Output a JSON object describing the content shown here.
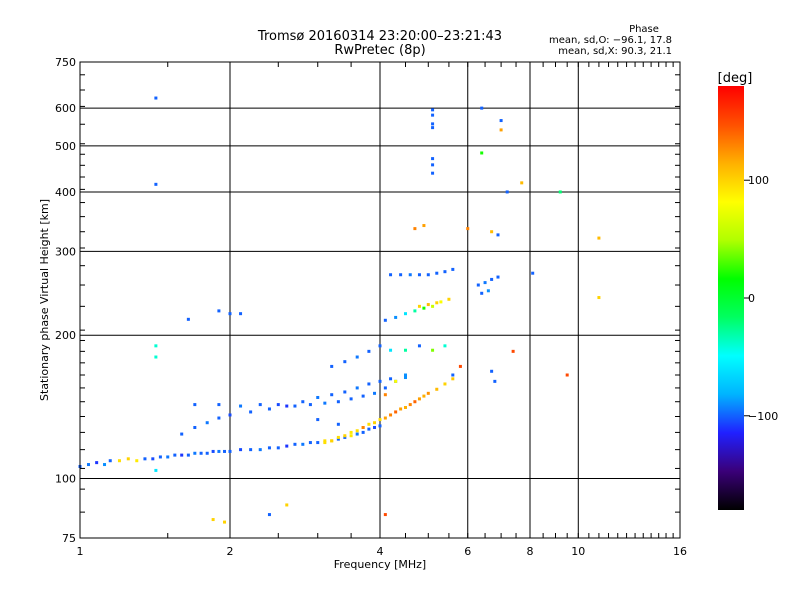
{
  "chart_data": {
    "type": "scatter",
    "title": "Tromsø 20160314 23:20:00–23:21:43",
    "subtitle": "RwPretec (8p)",
    "xlabel": "Frequency [MHz]",
    "ylabel": "Stationary phase Virtual Height [km]",
    "x_scale": "log",
    "y_scale": "log",
    "xlim": [
      1,
      16
    ],
    "ylim": [
      75,
      750
    ],
    "x_ticks": [
      "1",
      "2",
      "4",
      "6",
      "8",
      "10",
      "16"
    ],
    "y_ticks": [
      "75",
      "100",
      "200",
      "300",
      "400",
      "500",
      "600",
      "750"
    ],
    "grid": true,
    "stats": {
      "header": "Phase",
      "line_o": "mean, sd,O: −96.1, 17.8",
      "line_x": "mean, sd,X:  90.3, 21.1"
    },
    "colorbar": {
      "label": "[deg]",
      "ticks": [
        "100",
        "0",
        "−100"
      ],
      "tick_values": [
        100,
        0,
        -100
      ],
      "range": [
        -180,
        180
      ],
      "stops": [
        "#000000",
        "#3a0078",
        "#2020ff",
        "#00b4ff",
        "#00ffff",
        "#00ff60",
        "#00ff00",
        "#b0ff00",
        "#ffff00",
        "#ffb000",
        "#ff5000",
        "#ff0000"
      ]
    },
    "series": [
      {
        "points": [
          [
            1.0,
            106,
            -100
          ],
          [
            1.04,
            107,
            -95
          ],
          [
            1.08,
            108,
            -110
          ],
          [
            1.12,
            107,
            -90
          ],
          [
            1.15,
            109,
            -100
          ],
          [
            1.2,
            109,
            95
          ],
          [
            1.25,
            110,
            100
          ],
          [
            1.3,
            109,
            90
          ],
          [
            1.35,
            110,
            -100
          ],
          [
            1.4,
            110,
            -105
          ],
          [
            1.45,
            111,
            -100
          ],
          [
            1.5,
            111,
            -95
          ],
          [
            1.55,
            112,
            -100
          ],
          [
            1.6,
            112,
            -110
          ],
          [
            1.65,
            112,
            -100
          ],
          [
            1.7,
            113,
            -95
          ],
          [
            1.75,
            113,
            -100
          ],
          [
            1.8,
            113,
            -100
          ],
          [
            1.85,
            114,
            -105
          ],
          [
            1.9,
            114,
            -95
          ],
          [
            1.95,
            114,
            -100
          ],
          [
            2.0,
            114,
            -100
          ],
          [
            2.1,
            115,
            -105
          ],
          [
            2.2,
            115,
            -100
          ],
          [
            2.3,
            115,
            -95
          ],
          [
            2.4,
            116,
            -100
          ],
          [
            2.5,
            116,
            -100
          ],
          [
            2.6,
            117,
            -110
          ],
          [
            2.7,
            118,
            -100
          ],
          [
            2.8,
            118,
            -95
          ],
          [
            2.9,
            119,
            -100
          ],
          [
            3.0,
            119,
            -100
          ],
          [
            3.1,
            120,
            95
          ],
          [
            3.2,
            120,
            100
          ],
          [
            3.3,
            121,
            -100
          ],
          [
            3.4,
            122,
            -100
          ],
          [
            3.5,
            123,
            90
          ],
          [
            3.6,
            124,
            -95
          ],
          [
            3.7,
            125,
            -100
          ],
          [
            3.8,
            127,
            -100
          ],
          [
            3.9,
            128,
            -105
          ],
          [
            4.0,
            129,
            -100
          ],
          [
            3.1,
            119,
            95
          ],
          [
            3.2,
            120,
            100
          ],
          [
            3.3,
            122,
            95
          ],
          [
            3.4,
            123,
            100
          ],
          [
            3.5,
            125,
            90
          ],
          [
            3.6,
            126,
            95
          ],
          [
            3.7,
            128,
            100
          ],
          [
            3.8,
            130,
            95
          ],
          [
            3.9,
            131,
            100
          ],
          [
            4.0,
            133,
            95
          ],
          [
            4.1,
            134,
            120
          ],
          [
            4.2,
            136,
            130
          ],
          [
            4.3,
            138,
            140
          ],
          [
            4.4,
            140,
            120
          ],
          [
            4.5,
            141,
            115
          ],
          [
            4.6,
            143,
            130
          ],
          [
            4.7,
            145,
            140
          ],
          [
            4.8,
            147,
            120
          ],
          [
            4.9,
            149,
            115
          ],
          [
            5.0,
            151,
            125
          ],
          [
            5.2,
            154,
            110
          ],
          [
            5.4,
            158,
            100
          ],
          [
            5.6,
            162,
            105
          ],
          [
            1.6,
            124,
            -100
          ],
          [
            1.7,
            128,
            -100
          ],
          [
            1.8,
            131,
            -95
          ],
          [
            1.9,
            134,
            -100
          ],
          [
            2.0,
            136,
            -105
          ],
          [
            2.2,
            138,
            -100
          ],
          [
            2.4,
            140,
            -100
          ],
          [
            2.6,
            142,
            -110
          ],
          [
            2.8,
            145,
            -100
          ],
          [
            3.0,
            148,
            -95
          ],
          [
            3.2,
            150,
            -100
          ],
          [
            3.4,
            152,
            -100
          ],
          [
            3.6,
            155,
            -95
          ],
          [
            3.8,
            158,
            -100
          ],
          [
            4.0,
            160,
            -100
          ],
          [
            4.2,
            162,
            -100
          ],
          [
            4.5,
            165,
            -90
          ],
          [
            1.7,
            143,
            -100
          ],
          [
            1.9,
            143,
            -100
          ],
          [
            2.1,
            142,
            -95
          ],
          [
            2.3,
            143,
            -100
          ],
          [
            2.5,
            143,
            -105
          ],
          [
            2.7,
            142,
            -100
          ],
          [
            2.9,
            143,
            -100
          ],
          [
            3.1,
            144,
            -95
          ],
          [
            3.3,
            145,
            -100
          ],
          [
            3.5,
            147,
            -100
          ],
          [
            3.7,
            149,
            -100
          ],
          [
            3.9,
            151,
            -95
          ],
          [
            4.1,
            155,
            -100
          ],
          [
            4.3,
            160,
            -100
          ],
          [
            4.5,
            163,
            -90
          ],
          [
            3.2,
            172,
            -100
          ],
          [
            3.4,
            176,
            -100
          ],
          [
            3.6,
            180,
            -95
          ],
          [
            3.8,
            185,
            -100
          ],
          [
            4.0,
            190,
            -100
          ],
          [
            4.2,
            186,
            -60
          ],
          [
            4.5,
            186,
            -30
          ],
          [
            4.8,
            190,
            -100
          ],
          [
            5.1,
            186,
            40
          ],
          [
            5.4,
            190,
            -40
          ],
          [
            4.1,
            215,
            -100
          ],
          [
            4.3,
            218,
            -90
          ],
          [
            4.5,
            222,
            -60
          ],
          [
            4.7,
            225,
            -30
          ],
          [
            4.9,
            228,
            20
          ],
          [
            5.1,
            230,
            60
          ],
          [
            5.3,
            235,
            80
          ],
          [
            5.5,
            238,
            100
          ],
          [
            4.2,
            268,
            -100
          ],
          [
            4.4,
            268,
            -100
          ],
          [
            4.6,
            268,
            -95
          ],
          [
            4.8,
            268,
            -100
          ],
          [
            5.0,
            268,
            -100
          ],
          [
            5.2,
            270,
            -100
          ],
          [
            5.4,
            272,
            -100
          ],
          [
            5.6,
            275,
            -100
          ],
          [
            4.8,
            230,
            100
          ],
          [
            5.0,
            232,
            110
          ],
          [
            5.2,
            234,
            100
          ],
          [
            6.3,
            255,
            -100
          ],
          [
            6.5,
            258,
            -95
          ],
          [
            6.7,
            262,
            -100
          ],
          [
            6.9,
            265,
            -100
          ],
          [
            6.4,
            245,
            -100
          ],
          [
            6.6,
            248,
            -90
          ],
          [
            5.1,
            595,
            -100
          ],
          [
            5.1,
            580,
            -100
          ],
          [
            5.1,
            556,
            -100
          ],
          [
            5.1,
            546,
            -100
          ],
          [
            5.1,
            470,
            -100
          ],
          [
            5.1,
            456,
            -100
          ],
          [
            5.1,
            438,
            -100
          ],
          [
            6.4,
            600,
            -100
          ],
          [
            7.0,
            565,
            -100
          ],
          [
            7.0,
            540,
            120
          ],
          [
            6.4,
            483,
            20
          ],
          [
            7.2,
            400,
            -100
          ],
          [
            7.7,
            418,
            110
          ],
          [
            9.2,
            400,
            -20
          ],
          [
            11.0,
            320,
            110
          ],
          [
            11.0,
            240,
            100
          ],
          [
            8.1,
            270,
            -100
          ],
          [
            1.42,
            630,
            -100
          ],
          [
            1.42,
            415,
            -100
          ],
          [
            1.42,
            190,
            -40
          ],
          [
            1.42,
            180,
            -40
          ],
          [
            1.42,
            104,
            -60
          ],
          [
            1.65,
            216,
            -100
          ],
          [
            1.9,
            225,
            -100
          ],
          [
            2.0,
            222,
            -100
          ],
          [
            2.1,
            222,
            -100
          ],
          [
            1.85,
            82,
            100
          ],
          [
            1.95,
            81,
            100
          ],
          [
            2.4,
            84,
            -100
          ],
          [
            2.6,
            88,
            100
          ],
          [
            4.1,
            84,
            150
          ],
          [
            9.5,
            165,
            150
          ],
          [
            4.7,
            335,
            130
          ],
          [
            4.9,
            340,
            120
          ],
          [
            6.0,
            335,
            130
          ],
          [
            6.7,
            330,
            110
          ],
          [
            6.9,
            325,
            -100
          ],
          [
            7.4,
            185,
            150
          ],
          [
            6.7,
            168,
            -100
          ],
          [
            6.8,
            160,
            -100
          ],
          [
            5.6,
            165,
            -100
          ],
          [
            5.8,
            172,
            150
          ],
          [
            3.3,
            130,
            -100
          ],
          [
            3.0,
            133,
            -100
          ],
          [
            3.7,
            128,
            130
          ],
          [
            4.1,
            150,
            130
          ],
          [
            4.3,
            160,
            80
          ]
        ]
      }
    ]
  }
}
